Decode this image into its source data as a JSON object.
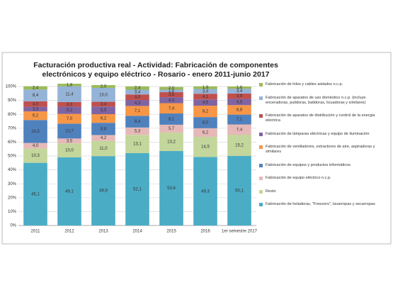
{
  "chart_data": {
    "type": "stacked-bar",
    "title": "Facturación productiva real - Actividad: Fabricación de componentes electrónicos y equipo eléctrico - Rosario - enero 2011-junio 2017",
    "categories": [
      "2011",
      "2012",
      "2013",
      "2014",
      "2015",
      "2016",
      "1er semestre 2017"
    ],
    "ylim": [
      0,
      100
    ],
    "yticks": [
      {
        "value": 0,
        "label": "0%"
      },
      {
        "value": 10,
        "label": "10%"
      },
      {
        "value": 20,
        "label": "20%"
      },
      {
        "value": 30,
        "label": "30%"
      },
      {
        "value": 40,
        "label": "40%"
      },
      {
        "value": 50,
        "label": "50%"
      },
      {
        "value": 60,
        "label": "60%"
      },
      {
        "value": 70,
        "label": "70%"
      },
      {
        "value": 80,
        "label": "80%"
      },
      {
        "value": 90,
        "label": "90%"
      },
      {
        "value": 100,
        "label": "100%"
      }
    ],
    "grid": true,
    "legend": "right",
    "series": [
      {
        "name": "Fabricación de heladeras, \"Freezers\", lavarropas y secarropas",
        "color": "#4bacc6",
        "values": [
          45.1,
          49.1,
          49.9,
          52.1,
          53.6,
          49.3,
          50.1
        ],
        "value_labels": [
          "45,1",
          "49,1",
          "49,9",
          "52,1",
          "53,6",
          "49,3",
          "50,1"
        ]
      },
      {
        "name": "Resto",
        "color": "#c3d69b",
        "values": [
          10.3,
          10.0,
          11.0,
          13.1,
          13.2,
          14.5,
          15.2
        ],
        "value_labels": [
          "10,3",
          "10,0",
          "11,0",
          "13,1",
          "13,2",
          "14,5",
          "15,2"
        ]
      },
      {
        "name": "Fabricación de equipo eléctrico n.c.p.",
        "color": "#e6b9b8",
        "values": [
          4.0,
          3.5,
          4.2,
          5.3,
          5.7,
          6.2,
          7.4
        ],
        "value_labels": [
          "4,0",
          "3,5",
          "4,2",
          "5,3",
          "5,7",
          "6,2",
          "7,4"
        ]
      },
      {
        "name": "Fabricación de equipos y productos informáticos",
        "color": "#4f81bd",
        "values": [
          16.5,
          10.7,
          8.8,
          8.4,
          8.1,
          8.0,
          7.1
        ],
        "value_labels": [
          "16,5",
          "10,7",
          "8,8",
          "8,4",
          "8,1",
          "8,0",
          "7,1"
        ]
      },
      {
        "name": "Fabricación de ventiladores, extractores de aire, aspiradoras y similares",
        "color": "#f79646",
        "values": [
          6.2,
          7.0,
          6.2,
          7.1,
          7.4,
          8.2,
          6.8
        ],
        "value_labels": [
          "6,2",
          "7,0",
          "6,2",
          "7,1",
          "7,4",
          "8,2",
          "6,8"
        ]
      },
      {
        "name": "Fabricación de lámparas eléctricas y equipo de iluminación",
        "color": "#8064a2",
        "values": [
          3.3,
          5.2,
          5.5,
          4.3,
          4.3,
          4.5,
          4.5
        ],
        "value_labels": [
          "3,3",
          "5,2",
          "5,5",
          "4,3",
          "4,3",
          "4,5",
          "4,5"
        ]
      },
      {
        "name": "Fabricación de aparatos de distribución y control de la energía eléctrica",
        "color": "#c0504d",
        "values": [
          4.0,
          3.3,
          3.4,
          4.0,
          3.6,
          4.1,
          3.9
        ],
        "value_labels": [
          "4,0",
          "3,3",
          "3,4",
          "4,0",
          "3,6",
          "4,1",
          "3,9"
        ]
      },
      {
        "name": "Fabricación de aparatos de uso doméstico n.c.p. (incluye enceradoras, pulidoras, batidoras, licuadoras y similares)",
        "color": "#95b3d7",
        "values": [
          8.4,
          11.4,
          10.0,
          3.4,
          1.8,
          3.4,
          3.4
        ],
        "value_labels": [
          "8,4",
          "11,4",
          "10,0",
          "3,4",
          "1,8",
          "3,4",
          "3,4"
        ]
      },
      {
        "name": "Fabricación de hilos y cables aislados n.c.p.",
        "color": "#9bbb59",
        "values": [
          2.4,
          1.8,
          2.0,
          2.4,
          2.0,
          1.9,
          1.6
        ],
        "value_labels": [
          "2,4",
          "1,8",
          "2,0",
          "2,4",
          "2,0",
          "1,9",
          "1,6"
        ]
      }
    ]
  }
}
